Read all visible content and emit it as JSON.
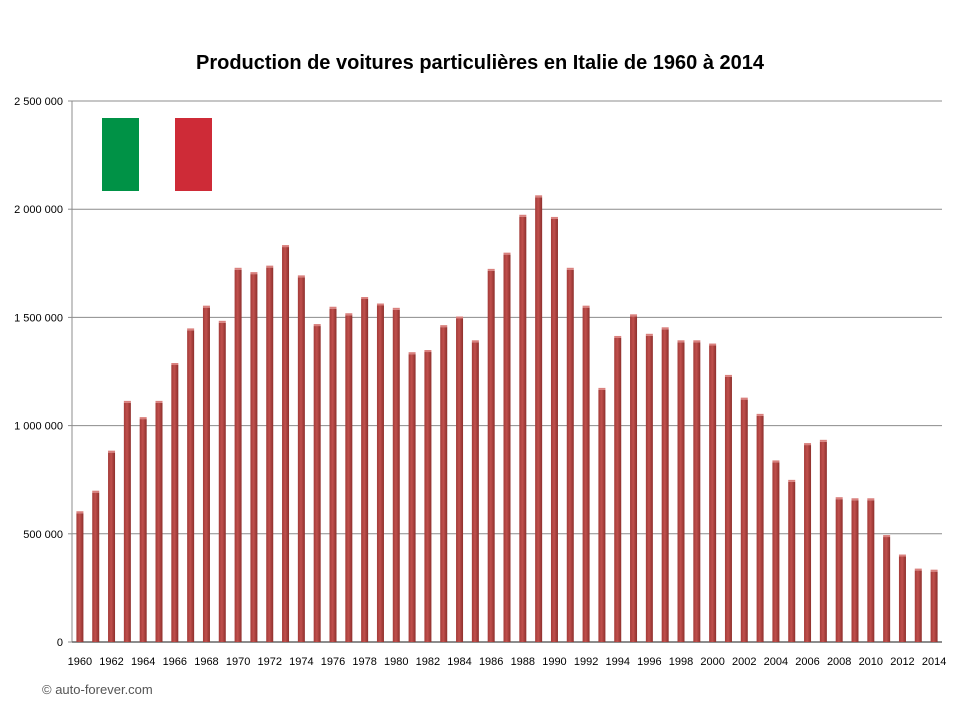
{
  "chart_data": {
    "type": "bar",
    "title": "Production de voitures particulières en Italie de 1960 à 2014",
    "xlabel": "",
    "ylabel": "",
    "ylim": [
      0,
      2500000
    ],
    "yticks": [
      0,
      500000,
      1000000,
      1500000,
      2000000,
      2500000
    ],
    "ytick_labels": [
      "0",
      "500 000",
      "1 000 000",
      "1 500 000",
      "2 000 000",
      "2 500 000"
    ],
    "xtick_labels": [
      "1960",
      "1962",
      "1964",
      "1966",
      "1968",
      "1970",
      "1972",
      "1974",
      "1976",
      "1978",
      "1980",
      "1982",
      "1984",
      "1986",
      "1988",
      "1990",
      "1992",
      "1994",
      "1996",
      "1998",
      "2000",
      "2002",
      "2004",
      "2006",
      "2008",
      "2010",
      "2012",
      "2014"
    ],
    "grid": true,
    "bar_color": "#c0504d",
    "categories": [
      1960,
      1961,
      1962,
      1963,
      1964,
      1965,
      1966,
      1967,
      1968,
      1969,
      1970,
      1971,
      1972,
      1973,
      1974,
      1975,
      1976,
      1977,
      1978,
      1979,
      1980,
      1981,
      1982,
      1983,
      1984,
      1985,
      1986,
      1987,
      1988,
      1989,
      1990,
      1991,
      1992,
      1993,
      1994,
      1995,
      1996,
      1997,
      1998,
      1999,
      2000,
      2001,
      2002,
      2003,
      2004,
      2005,
      2006,
      2007,
      2008,
      2009,
      2010,
      2011,
      2012,
      2013,
      2014
    ],
    "values": [
      595000,
      690000,
      875000,
      1105000,
      1030000,
      1105000,
      1280000,
      1440000,
      1545000,
      1475000,
      1720000,
      1700000,
      1730000,
      1825000,
      1685000,
      1460000,
      1540000,
      1510000,
      1585000,
      1555000,
      1535000,
      1330000,
      1340000,
      1455000,
      1495000,
      1385000,
      1715000,
      1790000,
      1965000,
      2055000,
      1955000,
      1720000,
      1545000,
      1165000,
      1405000,
      1505000,
      1415000,
      1445000,
      1385000,
      1385000,
      1370000,
      1225000,
      1120000,
      1045000,
      830000,
      740000,
      910000,
      925000,
      660000,
      655000,
      655000,
      485000,
      395000,
      330000,
      325000
    ]
  },
  "flag": {
    "left_color": "#009246",
    "right_color": "#ce2b37"
  },
  "footer": {
    "copyright": "© auto-forever.com"
  }
}
